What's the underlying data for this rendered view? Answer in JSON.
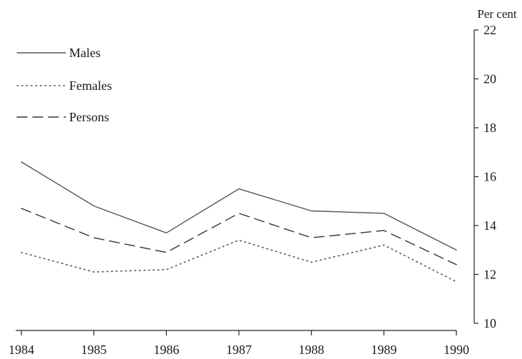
{
  "chart_data": {
    "type": "line",
    "ylabel": "Per cent",
    "x": [
      "1984",
      "1985",
      "1986",
      "1987",
      "1988",
      "1989",
      "1990"
    ],
    "ylim": [
      10,
      22
    ],
    "yticks": [
      10,
      12,
      14,
      16,
      18,
      20,
      22
    ],
    "y_axis_side": "right",
    "grid": false,
    "legend_position": "top-left",
    "series": [
      {
        "name": "Males",
        "style": "solid",
        "color": "#555555",
        "values": [
          16.6,
          14.8,
          13.7,
          15.5,
          14.6,
          14.5,
          13.0
        ]
      },
      {
        "name": "Females",
        "style": "dotted",
        "color": "#555555",
        "values": [
          12.9,
          12.1,
          12.2,
          13.4,
          12.5,
          13.2,
          11.7
        ]
      },
      {
        "name": "Persons",
        "style": "dashed",
        "color": "#333333",
        "values": [
          14.7,
          13.5,
          12.9,
          14.5,
          13.5,
          13.8,
          12.4
        ]
      }
    ]
  }
}
